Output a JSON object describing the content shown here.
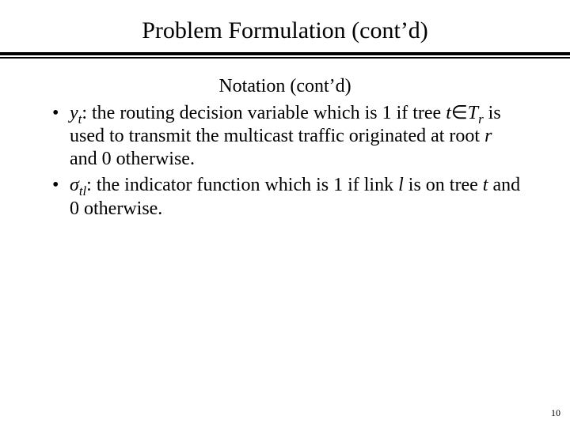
{
  "colors": {
    "background": "#ffffff",
    "text": "#000000"
  },
  "title": "Problem Formulation (cont’d)",
  "subheading": "Notation (cont’d)",
  "bullets": {
    "b1": {
      "sym": "y",
      "sub": "t",
      "lead": ": the routing decision variable which is 1 if tree ",
      "tree_t": "t",
      "in_sym": "∈",
      "T": "T",
      "T_sub": "r",
      "mid": " is used to transmit the multicast traffic originated at root ",
      "root_r": "r",
      "tail": " and 0 otherwise."
    },
    "b2": {
      "sym": "σ",
      "sub": "tl",
      "lead": ": the indicator function which is 1 if link ",
      "link_l": "l",
      "mid": "  is on tree ",
      "tree_t": "t",
      "tail": " and 0 otherwise."
    }
  },
  "page_number": "10"
}
